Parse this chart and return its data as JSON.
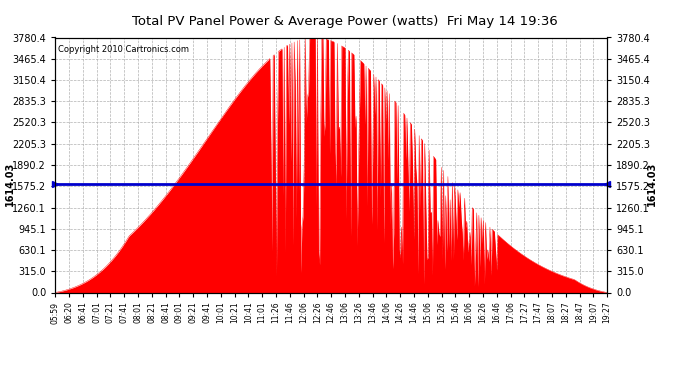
{
  "title": "Total PV Panel Power & Average Power (watts)  Fri May 14 19:36",
  "copyright": "Copyright 2010 Cartronics.com",
  "avg_power": 1614.03,
  "y_max": 3780.4,
  "y_ticks": [
    0.0,
    315.0,
    630.1,
    945.1,
    1260.1,
    1575.2,
    1890.2,
    2205.3,
    2520.3,
    2835.3,
    3150.4,
    3465.4,
    3780.4
  ],
  "fill_color": "#FF0000",
  "line_color": "#0000CC",
  "bg_color": "#FFFFFF",
  "plot_bg_color": "#FFFFFF",
  "grid_color": "#AAAAAA",
  "x_labels": [
    "05:59",
    "06:20",
    "06:41",
    "07:01",
    "07:21",
    "07:41",
    "08:01",
    "08:21",
    "08:41",
    "09:01",
    "09:21",
    "09:41",
    "10:01",
    "10:21",
    "10:41",
    "11:01",
    "11:26",
    "11:46",
    "12:06",
    "12:26",
    "12:46",
    "13:06",
    "13:26",
    "13:46",
    "14:06",
    "14:26",
    "14:46",
    "15:06",
    "15:26",
    "15:46",
    "16:06",
    "16:26",
    "16:46",
    "17:06",
    "17:27",
    "17:47",
    "18:07",
    "18:27",
    "18:47",
    "19:07",
    "19:27"
  ]
}
